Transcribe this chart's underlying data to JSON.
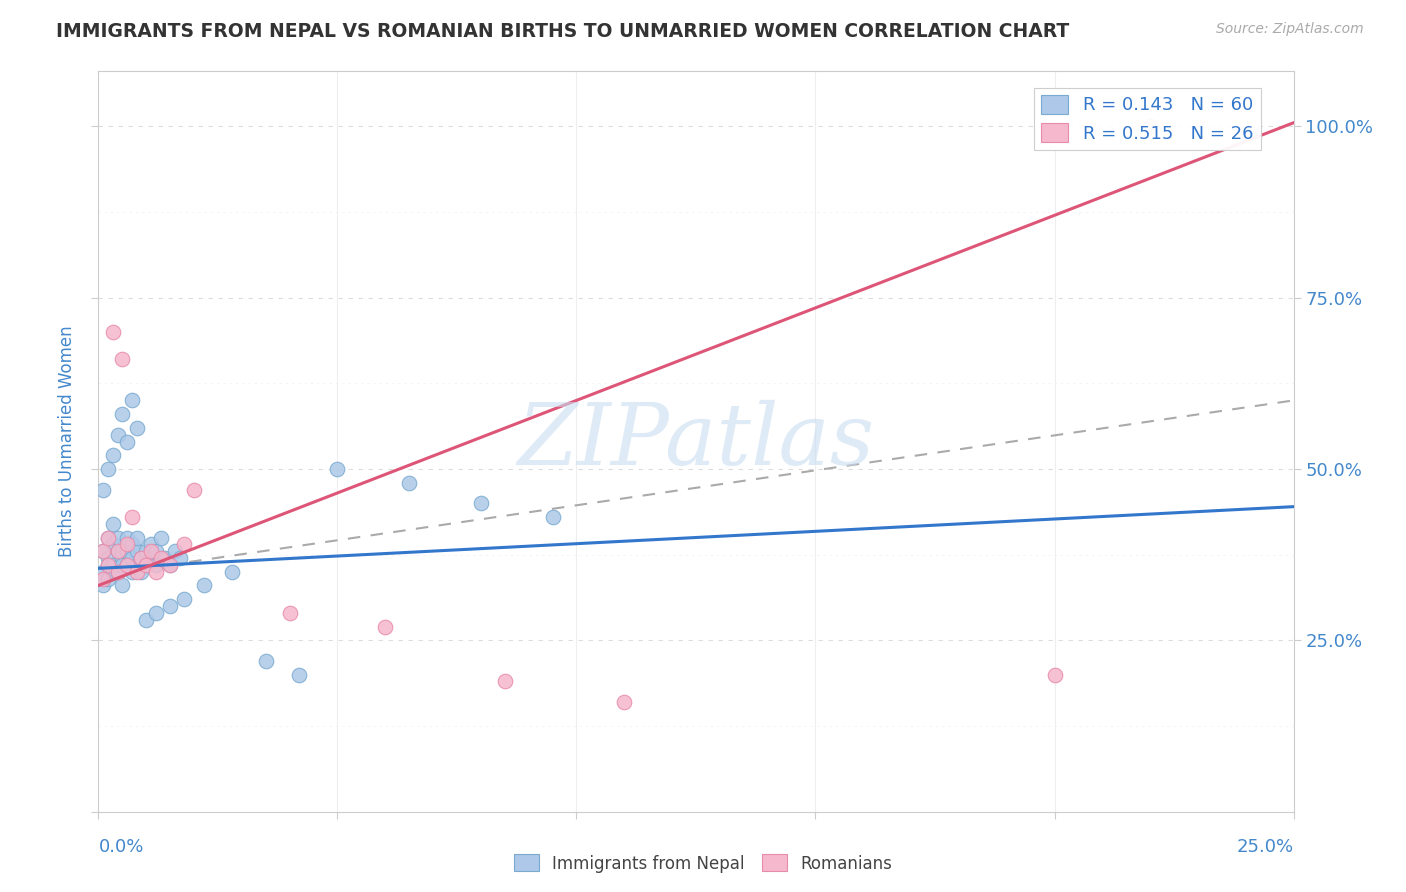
{
  "title": "IMMIGRANTS FROM NEPAL VS ROMANIAN BIRTHS TO UNMARRIED WOMEN CORRELATION CHART",
  "source": "Source: ZipAtlas.com",
  "ylabel": "Births to Unmarried Women",
  "xmin": 0.0,
  "xmax": 0.25,
  "ymin": 0.0,
  "ymax": 1.08,
  "R_blue": 0.143,
  "N_blue": 60,
  "R_pink": 0.515,
  "N_pink": 26,
  "blue_color": "#adc8e8",
  "pink_color": "#f5b8cc",
  "blue_edge": "#7aaad0",
  "pink_edge": "#e88aaa",
  "trend_blue": "#3377cc",
  "trend_pink": "#dd5577",
  "trend_gray": "#aaaaaa",
  "watermark": "ZIPatlas",
  "watermark_color": "#c8ddf0",
  "title_color": "#333333",
  "source_color": "#aaaaaa",
  "axis_color": "#4488cc",
  "legend_r_color": "#3377cc",
  "legend_n_color": "#3377cc",
  "grid_color": "#e0e0e0",
  "grid_dash": [
    4,
    4
  ],
  "blue_trend_x0": 0.0,
  "blue_trend_y0": 0.355,
  "blue_trend_x1": 0.25,
  "blue_trend_y1": 0.445,
  "pink_trend_x0": 0.0,
  "pink_trend_y0": 0.33,
  "pink_trend_x1": 0.25,
  "pink_trend_y1": 1.005,
  "gray_trend_x0": 0.0,
  "gray_trend_y0": 0.345,
  "gray_trend_x1": 0.25,
  "gray_trend_y1": 0.6,
  "blue_x": [
    0.001,
    0.001,
    0.001,
    0.002,
    0.002,
    0.002,
    0.002,
    0.003,
    0.003,
    0.003,
    0.003,
    0.004,
    0.004,
    0.004,
    0.005,
    0.005,
    0.005,
    0.005,
    0.006,
    0.006,
    0.006,
    0.007,
    0.007,
    0.007,
    0.008,
    0.008,
    0.008,
    0.009,
    0.009,
    0.01,
    0.01,
    0.011,
    0.011,
    0.012,
    0.012,
    0.013,
    0.014,
    0.015,
    0.016,
    0.017,
    0.001,
    0.002,
    0.003,
    0.004,
    0.005,
    0.006,
    0.007,
    0.008,
    0.01,
    0.012,
    0.015,
    0.018,
    0.022,
    0.028,
    0.035,
    0.042,
    0.05,
    0.065,
    0.08,
    0.095
  ],
  "blue_y": [
    0.35,
    0.38,
    0.33,
    0.37,
    0.36,
    0.4,
    0.34,
    0.39,
    0.35,
    0.42,
    0.36,
    0.38,
    0.35,
    0.4,
    0.37,
    0.36,
    0.38,
    0.33,
    0.38,
    0.36,
    0.4,
    0.35,
    0.37,
    0.39,
    0.36,
    0.38,
    0.4,
    0.37,
    0.35,
    0.38,
    0.36,
    0.37,
    0.39,
    0.36,
    0.38,
    0.4,
    0.37,
    0.36,
    0.38,
    0.37,
    0.47,
    0.5,
    0.52,
    0.55,
    0.58,
    0.54,
    0.6,
    0.56,
    0.28,
    0.29,
    0.3,
    0.31,
    0.33,
    0.35,
    0.22,
    0.2,
    0.5,
    0.48,
    0.45,
    0.43
  ],
  "pink_x": [
    0.001,
    0.001,
    0.002,
    0.002,
    0.003,
    0.004,
    0.004,
    0.005,
    0.006,
    0.006,
    0.007,
    0.008,
    0.009,
    0.01,
    0.011,
    0.012,
    0.013,
    0.015,
    0.018,
    0.02,
    0.04,
    0.06,
    0.085,
    0.11,
    0.2,
    0.22
  ],
  "pink_y": [
    0.34,
    0.38,
    0.36,
    0.4,
    0.7,
    0.35,
    0.38,
    0.66,
    0.36,
    0.39,
    0.43,
    0.35,
    0.37,
    0.36,
    0.38,
    0.35,
    0.37,
    0.36,
    0.39,
    0.47,
    0.29,
    0.27,
    0.19,
    0.16,
    0.2,
    1.0
  ]
}
